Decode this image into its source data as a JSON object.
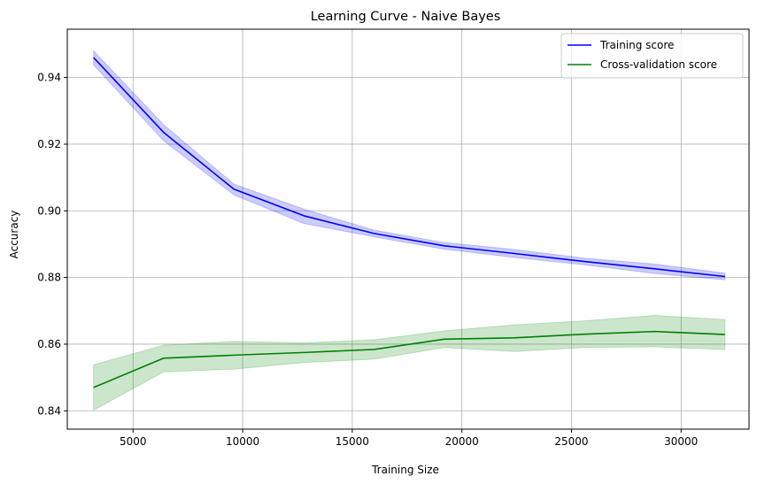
{
  "chart_data": {
    "type": "line",
    "title": "Learning Curve - Naive Bayes",
    "xlabel": "Training Size",
    "ylabel": "Accuracy",
    "xlim": [
      2000,
      33100
    ],
    "ylim": [
      0.8345,
      0.9545
    ],
    "xticks": [
      5000,
      10000,
      15000,
      20000,
      25000,
      30000
    ],
    "yticks": [
      0.84,
      0.86,
      0.88,
      0.9,
      0.92,
      0.94
    ],
    "grid": true,
    "legend_position": "top-right",
    "x": [
      3200,
      6400,
      9600,
      12800,
      16000,
      19200,
      22400,
      25600,
      28800,
      32000
    ],
    "series": [
      {
        "name": "Training score",
        "color": "#0000ff",
        "values": [
          0.946,
          0.9235,
          0.9065,
          0.8985,
          0.8932,
          0.8895,
          0.8872,
          0.8848,
          0.8826,
          0.8803
        ],
        "band_lower": [
          0.9438,
          0.921,
          0.9048,
          0.8962,
          0.8922,
          0.8885,
          0.886,
          0.8838,
          0.8812,
          0.8793
        ],
        "band_upper": [
          0.948,
          0.9258,
          0.908,
          0.9005,
          0.8942,
          0.8905,
          0.8884,
          0.8858,
          0.884,
          0.8813
        ],
        "band_color": "#0000ff"
      },
      {
        "name": "Cross-validation score",
        "color": "#008000",
        "values": [
          0.847,
          0.8558,
          0.8567,
          0.8575,
          0.8584,
          0.8615,
          0.8619,
          0.863,
          0.8638,
          0.8629
        ],
        "band_lower": [
          0.8402,
          0.8517,
          0.8525,
          0.8545,
          0.8555,
          0.859,
          0.8578,
          0.859,
          0.8592,
          0.8584
        ],
        "band_upper": [
          0.8538,
          0.8597,
          0.8608,
          0.8604,
          0.8613,
          0.864,
          0.8658,
          0.867,
          0.8686,
          0.8674
        ],
        "band_color": "#008000"
      }
    ]
  }
}
